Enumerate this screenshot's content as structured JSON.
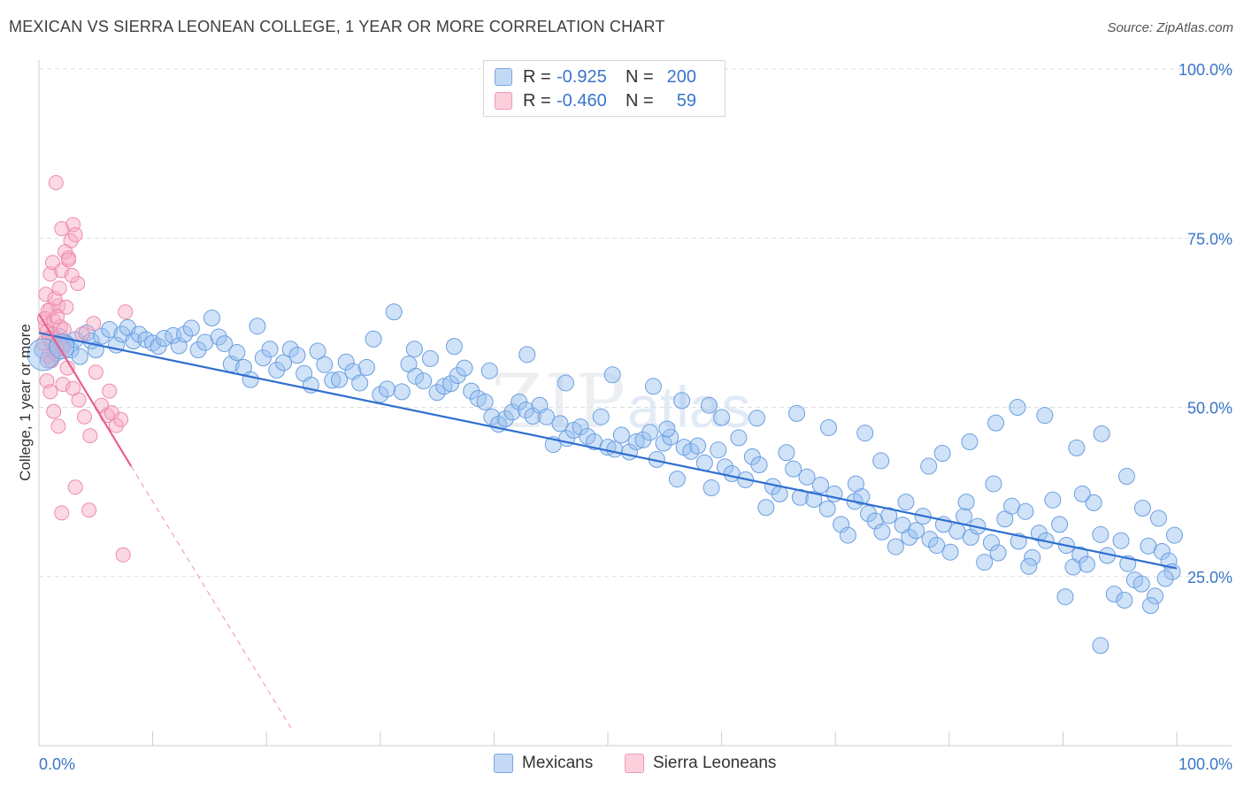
{
  "title": "MEXICAN VS SIERRA LEONEAN COLLEGE, 1 YEAR OR MORE CORRELATION CHART",
  "source": "Source: ZipAtlas.com",
  "watermark": {
    "zip": "ZIP",
    "atlas": "atlas"
  },
  "legend": {
    "rows": [
      {
        "r_label": "R = ",
        "r_value": "-0.925",
        "n_label": "N = ",
        "n_value": "200",
        "color": "#a9c8f0"
      },
      {
        "r_label": "R = ",
        "r_value": "-0.460",
        "n_label": "N = ",
        "n_value": "59",
        "color": "#f7b5c8"
      }
    ]
  },
  "bottom_legend": [
    {
      "label": "Mexicans",
      "color": "#a9c8f0"
    },
    {
      "label": "Sierra Leoneans",
      "color": "#f7b5c8"
    }
  ],
  "colors": {
    "blue_fill": "rgba(150,190,240,0.45)",
    "blue_stroke": "#6a9fe0",
    "blue_line": "#2f6fd0",
    "pink_fill": "rgba(247,170,195,0.45)",
    "pink_stroke": "#ee8aaa",
    "pink_line": "#e8608e",
    "axis_text": "#3a76c8",
    "grid": "#dddddd"
  },
  "chart_data": {
    "type": "scatter",
    "title": "MEXICAN VS SIERRA LEONEAN COLLEGE, 1 YEAR OR MORE CORRELATION CHART",
    "xlabel": "",
    "ylabel": "College, 1 year or more",
    "xlim": [
      0,
      100
    ],
    "ylim": [
      0,
      100
    ],
    "x_tick_labels": [
      "0.0%",
      "100.0%"
    ],
    "y_tick_labels": [
      "25.0%",
      "50.0%",
      "75.0%",
      "100.0%"
    ],
    "y_ticks": [
      25,
      50,
      75,
      100
    ],
    "series": [
      {
        "name": "Mexicans",
        "R": -0.925,
        "N": 200,
        "trend": {
          "x": [
            0,
            100
          ],
          "y": [
            61.0,
            26.2
          ]
        },
        "points": [
          [
            0.3,
            58.5
          ],
          [
            0.8,
            57.0
          ],
          [
            1.2,
            59.5
          ],
          [
            1.5,
            58.0
          ],
          [
            1.8,
            60.5
          ],
          [
            2.0,
            59.0
          ],
          [
            2.4,
            59.5
          ],
          [
            2.8,
            58.5
          ],
          [
            3.2,
            60.0
          ],
          [
            3.6,
            57.5
          ],
          [
            4.2,
            61.0
          ],
          [
            4.6,
            59.8
          ],
          [
            5.0,
            58.5
          ],
          [
            5.5,
            60.5
          ],
          [
            6.2,
            61.5
          ],
          [
            6.8,
            59.2
          ],
          [
            7.3,
            60.8
          ],
          [
            7.8,
            61.8
          ],
          [
            8.3,
            59.8
          ],
          [
            8.8,
            60.8
          ],
          [
            9.4,
            60.0
          ],
          [
            10.0,
            59.5
          ],
          [
            10.5,
            59.0
          ],
          [
            11.0,
            60.2
          ],
          [
            11.8,
            60.6
          ],
          [
            12.3,
            59.1
          ],
          [
            12.8,
            60.8
          ],
          [
            13.4,
            61.7
          ],
          [
            14.0,
            58.5
          ],
          [
            14.6,
            59.6
          ],
          [
            15.2,
            63.2
          ],
          [
            15.8,
            60.4
          ],
          [
            16.3,
            59.4
          ],
          [
            16.9,
            56.4
          ],
          [
            17.4,
            58.1
          ],
          [
            18.0,
            55.9
          ],
          [
            18.6,
            54.1
          ],
          [
            19.2,
            62.0
          ],
          [
            19.7,
            57.3
          ],
          [
            20.3,
            58.6
          ],
          [
            20.9,
            55.5
          ],
          [
            21.5,
            56.6
          ],
          [
            22.1,
            58.6
          ],
          [
            22.7,
            57.7
          ],
          [
            23.3,
            55.0
          ],
          [
            23.9,
            53.3
          ],
          [
            24.5,
            58.3
          ],
          [
            25.1,
            56.3
          ],
          [
            25.8,
            54.0
          ],
          [
            26.4,
            54.1
          ],
          [
            27.0,
            56.7
          ],
          [
            27.6,
            55.3
          ],
          [
            28.2,
            53.6
          ],
          [
            28.8,
            55.9
          ],
          [
            29.4,
            60.1
          ],
          [
            30.0,
            51.9
          ],
          [
            30.6,
            52.7
          ],
          [
            31.2,
            64.1
          ],
          [
            31.9,
            52.3
          ],
          [
            32.5,
            56.4
          ],
          [
            33.1,
            54.6
          ],
          [
            33.8,
            53.9
          ],
          [
            34.4,
            57.2
          ],
          [
            35.0,
            52.2
          ],
          [
            35.6,
            53.1
          ],
          [
            36.2,
            53.5
          ],
          [
            36.8,
            54.7
          ],
          [
            37.4,
            55.8
          ],
          [
            38.0,
            52.4
          ],
          [
            38.6,
            51.3
          ],
          [
            39.2,
            50.8
          ],
          [
            39.8,
            48.6
          ],
          [
            40.4,
            47.5
          ],
          [
            41.0,
            48.3
          ],
          [
            41.6,
            49.3
          ],
          [
            42.2,
            50.8
          ],
          [
            42.8,
            49.6
          ],
          [
            43.4,
            48.7
          ],
          [
            44.0,
            50.3
          ],
          [
            44.6,
            48.6
          ],
          [
            45.2,
            44.5
          ],
          [
            45.8,
            47.6
          ],
          [
            46.4,
            45.4
          ],
          [
            47.0,
            46.6
          ],
          [
            47.6,
            47.1
          ],
          [
            48.2,
            45.7
          ],
          [
            48.8,
            44.9
          ],
          [
            49.4,
            48.6
          ],
          [
            50.0,
            44.1
          ],
          [
            50.6,
            43.8
          ],
          [
            51.2,
            45.9
          ],
          [
            51.9,
            43.4
          ],
          [
            52.5,
            44.9
          ],
          [
            53.1,
            45.2
          ],
          [
            53.7,
            46.3
          ],
          [
            54.3,
            42.3
          ],
          [
            54.9,
            44.7
          ],
          [
            55.5,
            45.6
          ],
          [
            56.1,
            39.4
          ],
          [
            56.7,
            44.1
          ],
          [
            57.3,
            43.5
          ],
          [
            57.9,
            44.3
          ],
          [
            58.5,
            41.8
          ],
          [
            59.1,
            38.1
          ],
          [
            59.7,
            43.7
          ],
          [
            60.3,
            41.2
          ],
          [
            60.9,
            40.2
          ],
          [
            61.5,
            45.5
          ],
          [
            62.1,
            39.3
          ],
          [
            62.7,
            42.7
          ],
          [
            63.3,
            41.5
          ],
          [
            63.9,
            35.2
          ],
          [
            64.5,
            38.3
          ],
          [
            65.1,
            37.2
          ],
          [
            65.7,
            43.3
          ],
          [
            66.3,
            40.9
          ],
          [
            66.9,
            36.7
          ],
          [
            67.5,
            39.7
          ],
          [
            68.1,
            36.4
          ],
          [
            68.7,
            38.5
          ],
          [
            69.3,
            35.0
          ],
          [
            69.9,
            37.2
          ],
          [
            70.5,
            32.7
          ],
          [
            71.1,
            31.1
          ],
          [
            71.7,
            36.1
          ],
          [
            72.3,
            36.8
          ],
          [
            72.9,
            34.3
          ],
          [
            73.5,
            33.2
          ],
          [
            74.1,
            31.6
          ],
          [
            74.7,
            34.0
          ],
          [
            75.3,
            29.4
          ],
          [
            75.9,
            32.6
          ],
          [
            76.5,
            30.8
          ],
          [
            77.1,
            31.8
          ],
          [
            77.7,
            33.9
          ],
          [
            78.3,
            30.5
          ],
          [
            78.9,
            29.6
          ],
          [
            79.5,
            32.7
          ],
          [
            80.1,
            28.6
          ],
          [
            80.7,
            31.7
          ],
          [
            81.3,
            33.9
          ],
          [
            81.9,
            30.8
          ],
          [
            82.5,
            32.4
          ],
          [
            83.1,
            27.1
          ],
          [
            83.7,
            30.0
          ],
          [
            84.3,
            28.5
          ],
          [
            84.9,
            33.5
          ],
          [
            85.5,
            35.4
          ],
          [
            86.1,
            30.2
          ],
          [
            86.7,
            34.6
          ],
          [
            87.3,
            27.8
          ],
          [
            87.9,
            31.4
          ],
          [
            88.5,
            30.3
          ],
          [
            89.1,
            36.3
          ],
          [
            89.7,
            32.7
          ],
          [
            90.3,
            29.6
          ],
          [
            90.9,
            26.4
          ],
          [
            91.5,
            28.2
          ],
          [
            92.1,
            26.8
          ],
          [
            92.7,
            35.9
          ],
          [
            93.3,
            31.2
          ],
          [
            93.9,
            28.1
          ],
          [
            94.5,
            22.4
          ],
          [
            95.1,
            30.3
          ],
          [
            95.7,
            26.9
          ],
          [
            96.3,
            24.5
          ],
          [
            96.9,
            23.9
          ],
          [
            97.5,
            29.5
          ],
          [
            98.1,
            22.1
          ],
          [
            98.7,
            28.7
          ],
          [
            99.3,
            27.3
          ],
          [
            99.6,
            25.7
          ],
          [
            99.8,
            31.1
          ],
          [
            60.0,
            48.5
          ],
          [
            56.5,
            51.0
          ],
          [
            55.2,
            46.8
          ],
          [
            71.8,
            38.7
          ],
          [
            74.0,
            42.1
          ],
          [
            76.2,
            36.0
          ],
          [
            79.4,
            43.2
          ],
          [
            81.8,
            44.9
          ],
          [
            84.1,
            47.7
          ],
          [
            86.0,
            50.0
          ],
          [
            88.4,
            48.8
          ],
          [
            91.2,
            44.0
          ],
          [
            93.4,
            46.1
          ],
          [
            95.6,
            39.8
          ],
          [
            97.0,
            35.1
          ],
          [
            98.4,
            33.6
          ],
          [
            99.0,
            24.7
          ],
          [
            97.7,
            20.7
          ],
          [
            95.4,
            21.5
          ],
          [
            93.3,
            14.8
          ],
          [
            90.2,
            22.0
          ],
          [
            91.7,
            37.2
          ],
          [
            87.0,
            26.5
          ],
          [
            83.9,
            38.7
          ],
          [
            81.5,
            36.0
          ],
          [
            78.2,
            41.3
          ],
          [
            72.6,
            46.2
          ],
          [
            69.4,
            47.0
          ],
          [
            66.6,
            49.1
          ],
          [
            63.1,
            48.4
          ],
          [
            58.9,
            50.3
          ],
          [
            54.0,
            53.1
          ],
          [
            50.4,
            54.8
          ],
          [
            46.3,
            53.6
          ],
          [
            42.9,
            57.8
          ],
          [
            39.6,
            55.4
          ],
          [
            36.5,
            59.0
          ],
          [
            33.0,
            58.6
          ]
        ]
      },
      {
        "name": "Sierra Leoneans",
        "R": -0.46,
        "N": 59,
        "trend": {
          "x": [
            0,
            8.1
          ],
          "y": [
            63.8,
            41.3
          ],
          "dashed_to": {
            "x": 22.3,
            "y": 2.2
          }
        },
        "points": [
          [
            0.4,
            59.5
          ],
          [
            0.6,
            62.0
          ],
          [
            0.8,
            57.5
          ],
          [
            1.0,
            64.5
          ],
          [
            1.2,
            60.8
          ],
          [
            1.4,
            58.2
          ],
          [
            0.5,
            63.1
          ],
          [
            0.7,
            61.2
          ],
          [
            0.9,
            60.2
          ],
          [
            1.1,
            56.9
          ],
          [
            1.3,
            62.8
          ],
          [
            1.5,
            59.1
          ],
          [
            1.7,
            65.0
          ],
          [
            1.9,
            61.9
          ],
          [
            2.1,
            58.7
          ],
          [
            0.6,
            66.7
          ],
          [
            0.8,
            64.3
          ],
          [
            1.0,
            69.7
          ],
          [
            1.2,
            71.4
          ],
          [
            1.4,
            66.1
          ],
          [
            1.6,
            63.4
          ],
          [
            1.8,
            67.6
          ],
          [
            2.0,
            70.2
          ],
          [
            2.2,
            61.5
          ],
          [
            2.4,
            64.8
          ],
          [
            2.6,
            72.1
          ],
          [
            2.8,
            74.6
          ],
          [
            3.0,
            77.0
          ],
          [
            3.2,
            75.5
          ],
          [
            3.4,
            68.3
          ],
          [
            1.5,
            83.2
          ],
          [
            2.0,
            76.4
          ],
          [
            2.3,
            73.0
          ],
          [
            2.6,
            71.8
          ],
          [
            2.9,
            69.5
          ],
          [
            0.7,
            53.9
          ],
          [
            1.0,
            52.3
          ],
          [
            1.3,
            49.4
          ],
          [
            1.7,
            47.2
          ],
          [
            2.1,
            53.4
          ],
          [
            2.5,
            55.8
          ],
          [
            3.0,
            52.8
          ],
          [
            3.5,
            51.1
          ],
          [
            4.0,
            48.6
          ],
          [
            4.5,
            45.8
          ],
          [
            5.0,
            55.2
          ],
          [
            5.5,
            50.3
          ],
          [
            6.0,
            48.8
          ],
          [
            6.2,
            52.4
          ],
          [
            6.4,
            49.2
          ],
          [
            6.8,
            47.3
          ],
          [
            7.2,
            48.2
          ],
          [
            7.6,
            64.1
          ],
          [
            2.0,
            34.4
          ],
          [
            3.2,
            38.2
          ],
          [
            4.4,
            34.8
          ],
          [
            7.4,
            28.2
          ],
          [
            4.8,
            62.4
          ],
          [
            3.8,
            60.8
          ]
        ]
      }
    ]
  }
}
